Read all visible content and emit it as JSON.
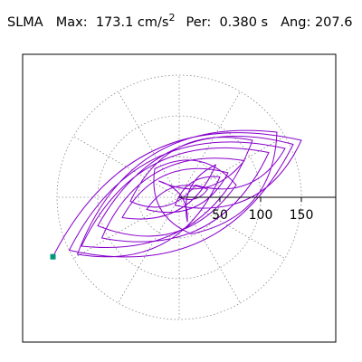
{
  "header": {
    "station": "SLMA",
    "max_label": "Max:",
    "max_value": "173.1 cm/s",
    "max_exp": "2",
    "period_label": "Per:",
    "period_value": "0.380 s",
    "angle_label": "Ang:",
    "angle_value": "207.6"
  },
  "colors": {
    "trace": "#8800cc",
    "marker": "#009977",
    "grid": "#888888",
    "axis": "#000000"
  },
  "chart_data": {
    "type": "polar-orbit",
    "title": "",
    "grid": "dotted-polar",
    "radial_rings": [
      50,
      100,
      150
    ],
    "spoke_angles_deg": [
      0,
      30,
      60,
      90,
      120,
      150,
      180,
      210,
      240,
      270,
      300,
      330
    ],
    "axis_ticks": [
      50,
      100,
      150
    ],
    "tick_labels": [
      "50",
      "100",
      "150"
    ],
    "xlim": [
      -185,
      185
    ],
    "ylim": [
      -170,
      170
    ],
    "max_acceleration": 173.1,
    "period_s": 0.38,
    "angle_deg": 207.6,
    "marker_position": [
      -155,
      -73
    ],
    "orbit_samples": [
      [
        0,
        0
      ],
      [
        35,
        10
      ],
      [
        -40,
        -15
      ],
      [
        60,
        30
      ],
      [
        -70,
        -25
      ],
      [
        45,
        40
      ],
      [
        10,
        -30
      ],
      [
        -25,
        20
      ],
      [
        80,
        45
      ],
      [
        -95,
        -50
      ],
      [
        110,
        55
      ],
      [
        -120,
        -60
      ],
      [
        90,
        70
      ],
      [
        -60,
        -5
      ],
      [
        20,
        15
      ],
      [
        130,
        60
      ],
      [
        -135,
        -65
      ],
      [
        140,
        65
      ],
      [
        -100,
        -35
      ],
      [
        70,
        15
      ],
      [
        -30,
        35
      ],
      [
        15,
        -45
      ],
      [
        120,
        80
      ],
      [
        -125,
        -70
      ],
      [
        50,
        25
      ],
      [
        -5,
        -10
      ],
      [
        150,
        70
      ],
      [
        -155,
        -73
      ]
    ]
  }
}
